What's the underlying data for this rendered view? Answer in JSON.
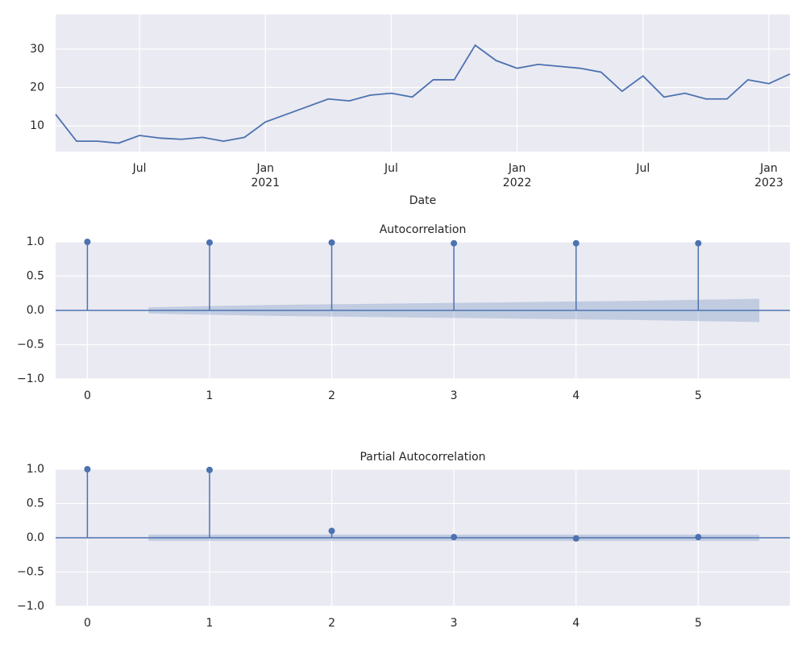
{
  "chart_data": [
    {
      "type": "line",
      "xlabel": "Date",
      "color": "#4c72b0",
      "grid": true,
      "x": [
        "2020-03",
        "2020-04",
        "2020-05",
        "2020-06",
        "2020-07",
        "2020-08",
        "2020-09",
        "2020-10",
        "2020-11",
        "2020-12",
        "2021-01",
        "2021-02",
        "2021-03",
        "2021-04",
        "2021-05",
        "2021-06",
        "2021-07",
        "2021-08",
        "2021-09",
        "2021-10",
        "2021-11",
        "2021-12",
        "2022-01",
        "2022-02",
        "2022-03",
        "2022-04",
        "2022-05",
        "2022-06",
        "2022-07",
        "2022-08",
        "2022-09",
        "2022-10",
        "2022-11",
        "2022-12",
        "2023-01",
        "2023-02"
      ],
      "values": [
        13,
        6,
        6,
        5.5,
        7.5,
        6.8,
        6.5,
        7,
        6,
        7,
        11,
        13,
        15,
        17,
        16.5,
        18,
        18.5,
        17.5,
        22,
        22,
        31,
        27,
        25,
        26,
        25.5,
        25,
        24,
        19,
        23,
        17.5,
        18.5,
        17,
        17,
        22,
        21,
        23.5
      ],
      "xlim": [
        "2020-03",
        "2023-02"
      ],
      "xticks": [
        {
          "value": "2020-07",
          "label": "Jul"
        },
        {
          "value": "2021-01",
          "label": "Jan\n2021"
        },
        {
          "value": "2021-07",
          "label": "Jul"
        },
        {
          "value": "2022-01",
          "label": "Jan\n2022"
        },
        {
          "value": "2022-07",
          "label": "Jul"
        },
        {
          "value": "2023-01",
          "label": "Jan\n2023"
        }
      ],
      "ylim": [
        3.3,
        39
      ],
      "yticks": [
        10,
        20,
        30
      ]
    },
    {
      "type": "stem",
      "title": "Autocorrelation",
      "color": "#4c72b0",
      "grid": true,
      "x": [
        0,
        1,
        2,
        3,
        4,
        5
      ],
      "values": [
        1,
        0.99,
        0.99,
        0.98,
        0.98,
        0.98
      ],
      "band": {
        "x": [
          0.5,
          1.5,
          2.5,
          3.5,
          4.5,
          5.5
        ],
        "upper": [
          0.045,
          0.08,
          0.1,
          0.12,
          0.14,
          0.17
        ],
        "lower": [
          -0.045,
          -0.08,
          -0.1,
          -0.12,
          -0.14,
          -0.17
        ]
      },
      "xlim": [
        -0.26,
        5.75
      ],
      "xticks": [
        0,
        1,
        2,
        3,
        4,
        5
      ],
      "ylim": [
        -1,
        1
      ],
      "yticks": [
        {
          "value": -1,
          "label": "−1.0"
        },
        {
          "value": -0.5,
          "label": "−0.5"
        },
        {
          "value": 0,
          "label": "0.0"
        },
        {
          "value": 0.5,
          "label": "0.5"
        },
        {
          "value": 1,
          "label": "1.0"
        }
      ]
    },
    {
      "type": "stem",
      "title": "Partial Autocorrelation",
      "color": "#4c72b0",
      "grid": true,
      "x": [
        0,
        1,
        2,
        3,
        4,
        5
      ],
      "values": [
        1,
        0.99,
        0.1,
        0.01,
        -0.01,
        0.01
      ],
      "band": {
        "x": [
          0.5,
          1.5,
          2.5,
          3.5,
          4.5,
          5.5
        ],
        "upper": [
          0.045,
          0.045,
          0.045,
          0.045,
          0.045,
          0.045
        ],
        "lower": [
          -0.045,
          -0.045,
          -0.045,
          -0.045,
          -0.045,
          -0.045
        ]
      },
      "xlim": [
        -0.26,
        5.75
      ],
      "xticks": [
        0,
        1,
        2,
        3,
        4,
        5
      ],
      "ylim": [
        -1,
        1
      ],
      "yticks": [
        {
          "value": -1,
          "label": "−1.0"
        },
        {
          "value": -0.5,
          "label": "−0.5"
        },
        {
          "value": 0,
          "label": "0.0"
        },
        {
          "value": 0.5,
          "label": "0.5"
        },
        {
          "value": 1,
          "label": "1.0"
        }
      ]
    }
  ]
}
